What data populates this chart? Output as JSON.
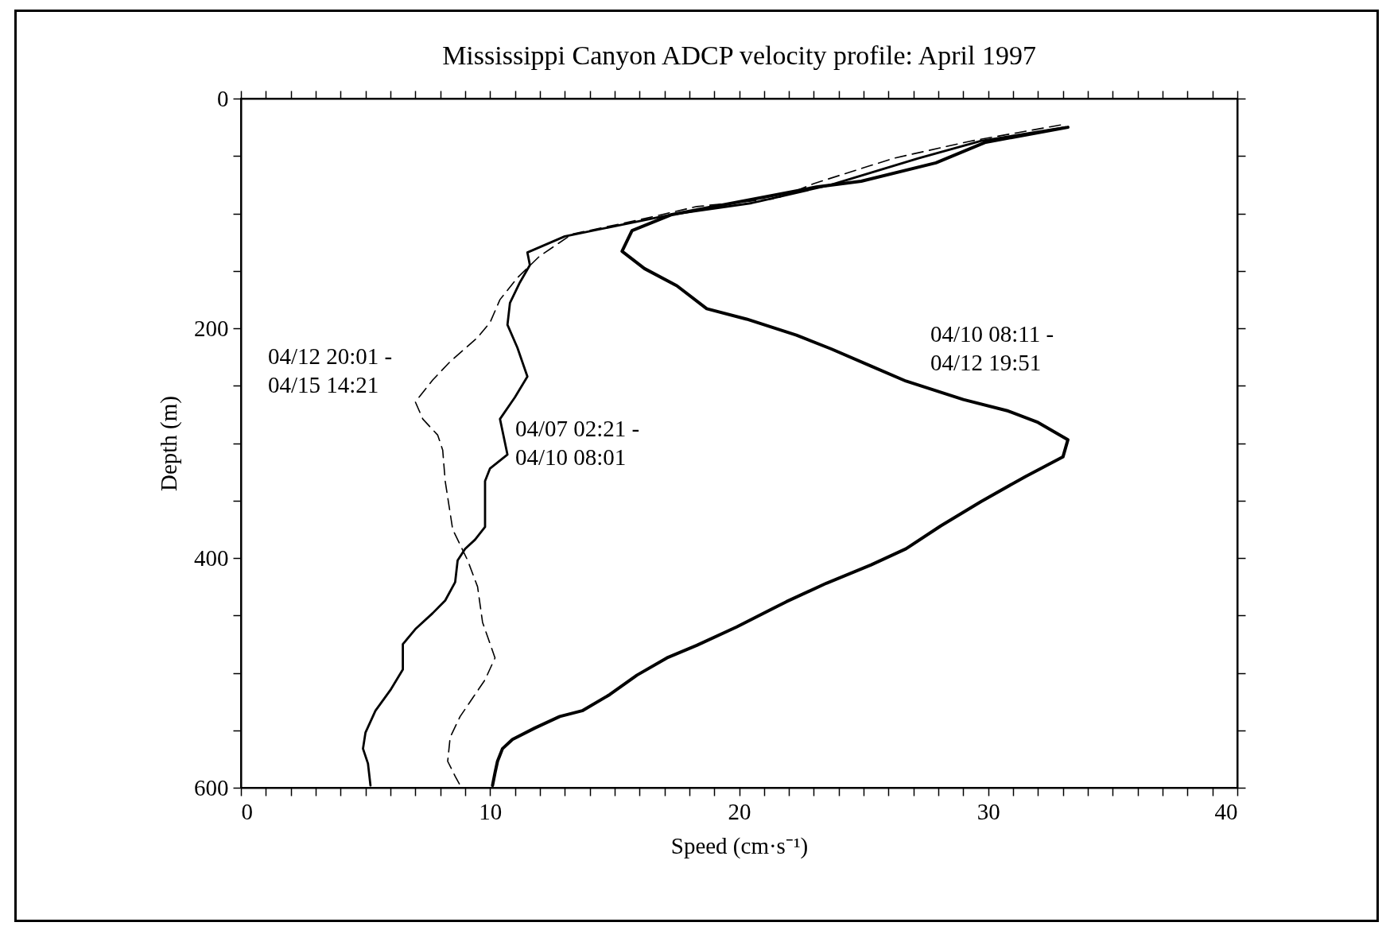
{
  "chart_data": {
    "type": "line",
    "title": "Mississippi Canyon ADCP velocity profile: April 1997",
    "xlabel": "Speed (cm·s⁻¹)",
    "ylabel": "Depth (m)",
    "xlim": [
      0,
      40
    ],
    "ylim": [
      600,
      0
    ],
    "xticks": [
      0,
      {
        "value": 1,
        "label": null
      },
      {
        "value": 2,
        "label": null
      },
      {
        "value": 3,
        "label": null
      },
      {
        "value": 4,
        "label": null
      },
      {
        "value": 5,
        "label": null
      },
      {
        "value": 6,
        "label": null
      },
      {
        "value": 7,
        "label": null
      },
      {
        "value": 8,
        "label": null
      },
      {
        "value": 9,
        "label": null
      },
      10,
      {
        "value": 11,
        "label": null
      },
      {
        "value": 12,
        "label": null
      },
      {
        "value": 13,
        "label": null
      },
      {
        "value": 14,
        "label": null
      },
      {
        "value": 15,
        "label": null
      },
      {
        "value": 16,
        "label": null
      },
      {
        "value": 17,
        "label": null
      },
      {
        "value": 18,
        "label": null
      },
      {
        "value": 19,
        "label": null
      },
      20,
      {
        "value": 21,
        "label": null
      },
      {
        "value": 22,
        "label": null
      },
      {
        "value": 23,
        "label": null
      },
      {
        "value": 24,
        "label": null
      },
      {
        "value": 25,
        "label": null
      },
      {
        "value": 26,
        "label": null
      },
      {
        "value": 27,
        "label": null
      },
      {
        "value": 28,
        "label": null
      },
      {
        "value": 29,
        "label": null
      },
      30,
      {
        "value": 31,
        "label": null
      },
      {
        "value": 32,
        "label": null
      },
      {
        "value": 33,
        "label": null
      },
      {
        "value": 34,
        "label": null
      },
      {
        "value": 35,
        "label": null
      },
      {
        "value": 36,
        "label": null
      },
      {
        "value": 37,
        "label": null
      },
      {
        "value": 38,
        "label": null
      },
      {
        "value": 39,
        "label": null
      },
      40
    ],
    "yticks": [
      0,
      {
        "value": 50,
        "label": null
      },
      {
        "value": 100,
        "label": null
      },
      {
        "value": 150,
        "label": null
      },
      200,
      {
        "value": 250,
        "label": null
      },
      {
        "value": 300,
        "label": null
      },
      {
        "value": 350,
        "label": null
      },
      400,
      {
        "value": 450,
        "label": null
      },
      {
        "value": 500,
        "label": null
      },
      {
        "value": 550,
        "label": null
      },
      600
    ],
    "series": [
      {
        "name": "04/10 08:11 - 04/12 19:51",
        "color": "#000000",
        "line_style": "solid",
        "x": [
          33.2,
          29.9,
          27.9,
          24.9,
          23.1,
          20.7,
          17.3,
          15.7,
          15.3,
          16.2,
          17.5,
          18.7,
          20.3,
          22.3,
          23.7,
          25.3,
          26.7,
          29.0,
          30.8,
          32.0,
          33.2,
          33.0,
          31.5,
          29.7,
          28.1,
          26.7,
          25.3,
          23.5,
          21.9,
          19.9,
          18.3,
          17.1,
          15.9,
          14.8,
          13.7,
          12.8,
          11.8,
          10.9,
          10.5,
          10.3,
          10.2,
          10.1
        ],
        "values": [
          25,
          38,
          56,
          72,
          77,
          87,
          101,
          115,
          133,
          148,
          163,
          183,
          192,
          206,
          218,
          233,
          246,
          262,
          272,
          282,
          297,
          312,
          329,
          351,
          372,
          392,
          406,
          422,
          438,
          460,
          476,
          487,
          502,
          519,
          533,
          538,
          548,
          558,
          566,
          577,
          587,
          598
        ]
      },
      {
        "name": "04/07 02:21 - 04/10 08:01",
        "color": "#000000",
        "line_style": "solid",
        "x": [
          33.1,
          29.7,
          27.2,
          23.7,
          20.5,
          17.3,
          14.8,
          13.0,
          11.5,
          11.6,
          11.2,
          10.8,
          10.7,
          11.1,
          11.5,
          11.0,
          10.4,
          10.7,
          10.0,
          9.8,
          9.8,
          9.4,
          9.0,
          8.7,
          8.6,
          8.2,
          7.7,
          7.0,
          6.5,
          6.5,
          6.0,
          5.4,
          5.0,
          4.9,
          5.1,
          5.2
        ],
        "values": [
          25,
          37,
          52,
          75,
          91,
          101,
          112,
          120,
          134,
          145,
          160,
          178,
          197,
          217,
          242,
          260,
          279,
          310,
          322,
          333,
          373,
          384,
          392,
          402,
          421,
          437,
          448,
          462,
          475,
          497,
          515,
          533,
          552,
          566,
          579,
          598
        ]
      },
      {
        "name": "04/12 20:01 - 04/15 14:21",
        "color": "#000000",
        "line_style": "dashed",
        "x": [
          32.9,
          29.3,
          26.2,
          23.0,
          21.5,
          18.3,
          15.9,
          13.3,
          12.0,
          11.1,
          10.4,
          10.0,
          9.5,
          8.4,
          7.7,
          7.0,
          7.3,
          7.9,
          8.1,
          8.2,
          8.5,
          9.1,
          9.5,
          9.7,
          10.2,
          9.8,
          9.3,
          8.8,
          8.4,
          8.3,
          8.6,
          8.8
        ],
        "values": [
          23,
          37,
          52,
          74,
          87,
          94,
          106,
          118,
          137,
          156,
          175,
          195,
          208,
          229,
          245,
          264,
          279,
          293,
          306,
          333,
          375,
          402,
          425,
          456,
          487,
          506,
          522,
          538,
          556,
          577,
          590,
          598
        ]
      }
    ]
  }
}
